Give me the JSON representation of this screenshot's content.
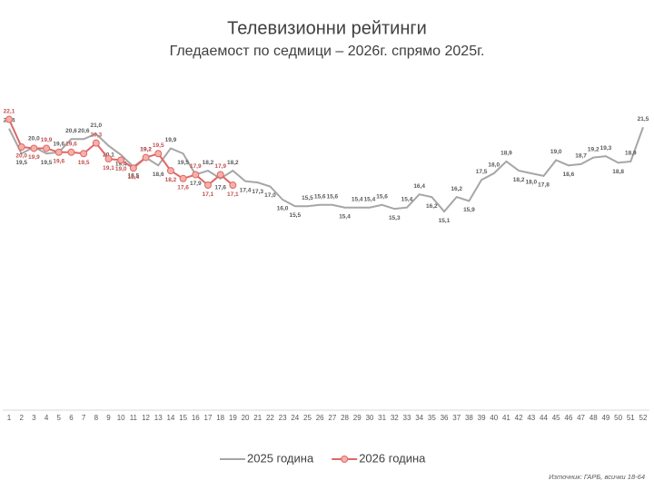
{
  "chart_data": {
    "type": "line",
    "title": "Телевизионни рейтинги",
    "subtitle": "Гледаемост по седмици – 2026г. спрямо 2025г.",
    "source": "Източник: ГАРБ, всички 18-64",
    "categories": [
      "1",
      "2",
      "3",
      "4",
      "5",
      "6",
      "7",
      "8",
      "9",
      "10",
      "11",
      "12",
      "13",
      "14",
      "15",
      "16",
      "17",
      "18",
      "19",
      "20",
      "21",
      "22",
      "23",
      "24",
      "25",
      "26",
      "27",
      "28",
      "29",
      "30",
      "31",
      "32",
      "33",
      "34",
      "35",
      "36",
      "37",
      "38",
      "39",
      "40",
      "41",
      "42",
      "43",
      "44",
      "45",
      "46",
      "47",
      "48",
      "49",
      "50",
      "51",
      "52"
    ],
    "ylim": [
      0,
      30
    ],
    "legend": "bottom",
    "series": [
      {
        "name": "2025 година",
        "color": "#a6a6a6",
        "marker": false,
        "values": [
          21.4,
          19.5,
          20.0,
          19.5,
          19.6,
          20.6,
          20.6,
          21.0,
          20.1,
          19.4,
          18.5,
          19.2,
          18.6,
          19.9,
          19.5,
          17.9,
          18.2,
          17.6,
          18.2,
          17.4,
          17.3,
          17.0,
          16.0,
          15.5,
          15.5,
          15.6,
          15.6,
          15.4,
          15.4,
          15.4,
          15.6,
          15.3,
          15.4,
          16.4,
          16.2,
          15.1,
          16.2,
          15.9,
          17.5,
          18.0,
          18.9,
          18.2,
          18.0,
          17.8,
          19.0,
          18.6,
          18.7,
          19.2,
          19.3,
          18.8,
          18.9,
          21.5
        ],
        "value_labels": [
          "21,4",
          "19,5",
          "20,0",
          "19,5",
          "19,6",
          "20,6",
          "20,6",
          "21,0",
          "20,1",
          "19,4",
          "18,5",
          "19,2",
          "18,6",
          "19,9",
          "19,5",
          "17,9",
          "18,2",
          "17,6",
          "18,2",
          "17,4",
          "17,3",
          "17,0",
          "16,0",
          "15,5",
          "15,5",
          "15,6",
          "15,6",
          "15,4",
          "15,4",
          "15,4",
          "15,6",
          "15,3",
          "15,4",
          "16,4",
          "16,2",
          "15,1",
          "16,2",
          "15,9",
          "17,5",
          "18,0",
          "18,9",
          "18,2",
          "18,0",
          "17,8",
          "19,0",
          "18,6",
          "18,7",
          "19,2",
          "19,3",
          "18,8",
          "18,9",
          "21,5"
        ]
      },
      {
        "name": "2026 година",
        "color": "#e06666",
        "marker": true,
        "marker_fill": "#f4b1a8",
        "values": [
          22.1,
          20.0,
          19.9,
          19.9,
          19.6,
          19.6,
          19.5,
          20.3,
          19.1,
          19.0,
          18.4,
          19.2,
          19.5,
          18.2,
          17.6,
          17.9,
          17.1,
          17.9,
          17.1,
          null,
          null,
          null,
          null,
          null,
          null,
          null,
          null,
          null,
          null,
          null,
          null,
          null,
          null,
          null,
          null,
          null,
          null,
          null,
          null,
          null,
          null,
          null,
          null,
          null,
          null,
          null,
          null,
          null,
          null,
          null,
          null,
          null
        ],
        "value_labels": [
          "22,1",
          "20,0",
          "19,9",
          "19,9",
          "19,6",
          "19,6",
          "19,5",
          "20,3",
          "19,1",
          "19,0",
          "18,4",
          "19,2",
          "19,5",
          "18,2",
          "17,6",
          "17,9",
          "17,1",
          "17,9",
          "17,1",
          null,
          null,
          null,
          null,
          null,
          null,
          null,
          null,
          null,
          null,
          null,
          null,
          null,
          null,
          null,
          null,
          null,
          null,
          null,
          null,
          null,
          null,
          null,
          null,
          null,
          null,
          null,
          null,
          null,
          null,
          null,
          null,
          null
        ]
      }
    ]
  }
}
